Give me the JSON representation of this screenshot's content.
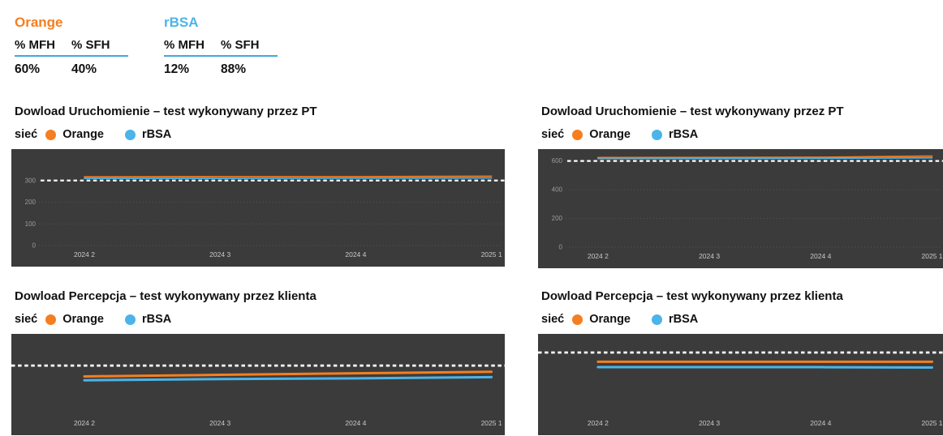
{
  "summary_tables": [
    {
      "title": "Orange",
      "title_color": "#f57e20",
      "columns": [
        "% MFH",
        "% SFH"
      ],
      "values": [
        "60%",
        "40%"
      ]
    },
    {
      "title": "rBSA",
      "title_color": "#4bb4e8",
      "columns": [
        "% MFH",
        "% SFH"
      ],
      "values": [
        "12%",
        "88%"
      ]
    }
  ],
  "legend": {
    "prefix": "sieć",
    "items": [
      {
        "label": "Orange",
        "color": "#f57e20"
      },
      {
        "label": "rBSA",
        "color": "#4bb4e8"
      }
    ]
  },
  "colors": {
    "plot_background": "#3b3b3b",
    "reference_line": "#ffffff",
    "axis_tick_text": "#9b9b9b",
    "x_label_text": "#c9c9c9",
    "table_underline": "#3fa9e0"
  },
  "chart_data": [
    {
      "id": "uruchomienie-left",
      "type": "line",
      "title": "Dowload Uruchomienie – test wykonywany przez PT",
      "x_categories": [
        "2024 2",
        "2024 3",
        "2024 4",
        "2025 1"
      ],
      "yticks": [
        0,
        100,
        200,
        300
      ],
      "ylim": [
        0,
        430
      ],
      "reference_line": 300,
      "grid": "dotted-faint",
      "legend_position": "above",
      "series": [
        {
          "name": "Orange",
          "color": "#f57e20",
          "values": [
            317,
            318,
            318,
            320
          ]
        },
        {
          "name": "rBSA",
          "color": "#4bb4e8",
          "values": [
            310,
            310,
            311,
            312
          ]
        }
      ]
    },
    {
      "id": "uruchomienie-right",
      "type": "line",
      "title": "Dowload Uruchomienie – test wykonywany przez PT",
      "x_categories": [
        "2024 2",
        "2024 3",
        "2024 4",
        "2025 1"
      ],
      "yticks": [
        0,
        200,
        400,
        600
      ],
      "ylim": [
        0,
        660
      ],
      "reference_line": 600,
      "grid": "dotted-faint",
      "legend_position": "above",
      "series": [
        {
          "name": "Orange",
          "color": "#f57e20",
          "values": [
            624,
            625,
            626,
            634
          ]
        },
        {
          "name": "rBSA",
          "color": "#4bb4e8",
          "values": [
            617,
            617,
            618,
            622
          ]
        }
      ]
    },
    {
      "id": "percepcja-left",
      "type": "line",
      "title": "Dowload Percepcja – test wykonywany przez klienta",
      "x_categories": [
        "2024 2",
        "2024 3",
        "2024 4",
        "2025 1"
      ],
      "yticks": [],
      "ylim": [
        0,
        1
      ],
      "value_scale": "normalized-estimate (no y-axis labels shown)",
      "reference_line": 0.63,
      "grid": "none",
      "legend_position": "above",
      "series": [
        {
          "name": "Orange",
          "color": "#f57e20",
          "values": [
            0.49,
            0.51,
            0.53,
            0.55
          ]
        },
        {
          "name": "rBSA",
          "color": "#4bb4e8",
          "values": [
            0.44,
            0.455,
            0.465,
            0.48
          ]
        }
      ]
    },
    {
      "id": "percepcja-right",
      "type": "line",
      "title": "Dowload Percepcja – test wykonywany przez klienta",
      "x_categories": [
        "2024 2",
        "2024 3",
        "2024 4",
        "2025 1"
      ],
      "yticks": [],
      "ylim": [
        0,
        1
      ],
      "value_scale": "normalized-estimate (no y-axis labels shown)",
      "reference_line": 0.8,
      "grid": "none",
      "legend_position": "above",
      "series": [
        {
          "name": "Orange",
          "color": "#f57e20",
          "values": [
            0.68,
            0.68,
            0.68,
            0.68
          ]
        },
        {
          "name": "rBSA",
          "color": "#4bb4e8",
          "values": [
            0.61,
            0.61,
            0.61,
            0.605
          ]
        }
      ]
    }
  ]
}
